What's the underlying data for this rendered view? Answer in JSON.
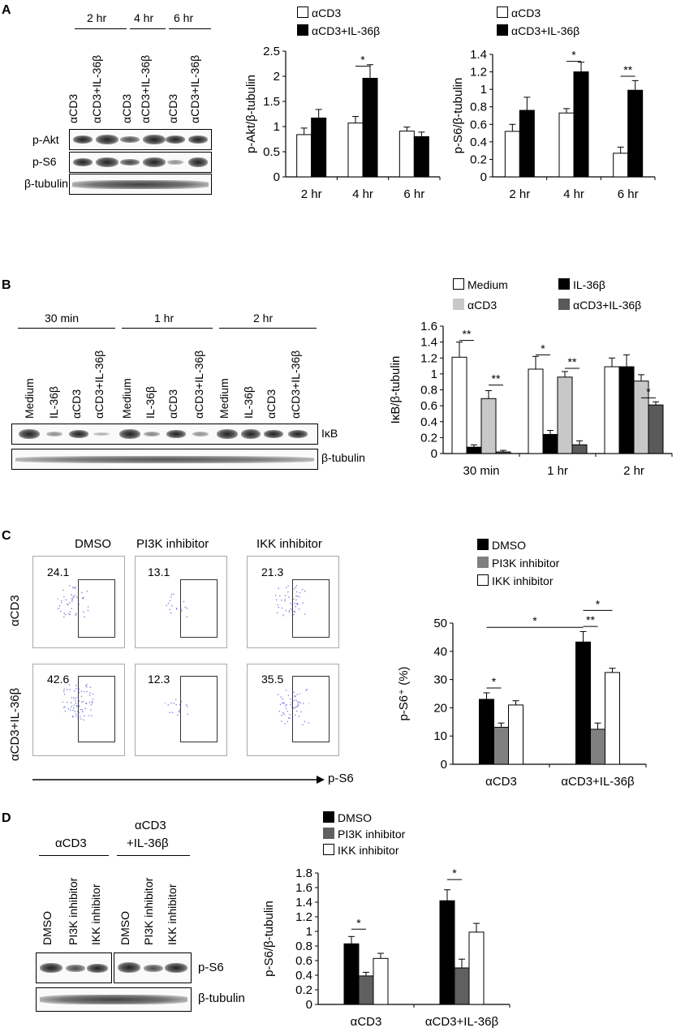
{
  "panels": {
    "A": {
      "letter": "A",
      "blot": {
        "timepoints": [
          "2 hr",
          "4 hr",
          "6 hr"
        ],
        "lanes": [
          "αCD3",
          "αCD3+IL-36β",
          "αCD3",
          "αCD3+IL-36β",
          "αCD3",
          "αCD3+IL-36β"
        ],
        "rows": [
          "p-Akt",
          "p-S6",
          "β-tubulin"
        ]
      }
    },
    "B": {
      "letter": "B",
      "blot": {
        "timepoints": [
          "30 min",
          "1 hr",
          "2 hr"
        ],
        "lanes": [
          "Medium",
          "IL-36β",
          "αCD3",
          "αCD3+IL-36β",
          "Medium",
          "IL-36β",
          "αCD3",
          "αCD3+IL-36β",
          "Medium",
          "IL-36β",
          "αCD3",
          "αCD3+IL-36β"
        ],
        "rows": [
          "IκB",
          "β-tubulin"
        ]
      }
    },
    "C": {
      "letter": "C",
      "flow": {
        "columns": [
          "DMSO",
          "PI3K inhibitor",
          "IKK inhibitor"
        ],
        "rows": [
          "αCD3",
          "αCD3+IL-36β"
        ],
        "percents": [
          [
            "24.1",
            "13.1",
            "21.3"
          ],
          [
            "42.6",
            "12.3",
            "35.5"
          ]
        ],
        "x_axis": "p-S6"
      }
    },
    "D": {
      "letter": "D",
      "blot": {
        "groups": [
          "αCD3",
          "αCD3",
          "+IL-36β"
        ],
        "lanes": [
          "DMSO",
          "PI3K inhibitor",
          "IKK inhibitor",
          "DMSO",
          "PI3K inhibitor",
          "IKK inhibitor"
        ],
        "rows": [
          "p-S6",
          "β-tubulin"
        ]
      }
    }
  },
  "chart_data": [
    {
      "type": "bar",
      "ylabel": "p-Akt/β-tubulin",
      "categories": [
        "2 hr",
        "4 hr",
        "6 hr"
      ],
      "ylim": [
        0,
        2.5
      ],
      "yticks": [
        "0",
        "0.5",
        "1",
        "1.5",
        "2",
        "2.5"
      ],
      "series": [
        {
          "name": "αCD3",
          "color": "#ffffff",
          "values": [
            0.84,
            1.07,
            0.91
          ],
          "errors": [
            0.13,
            0.13,
            0.08
          ]
        },
        {
          "name": "αCD3+IL-36β",
          "color": "#000000",
          "values": [
            1.17,
            1.96,
            0.8
          ],
          "errors": [
            0.17,
            0.27,
            0.09
          ]
        }
      ],
      "annotations": [
        {
          "between": "4 hr",
          "text": "*"
        }
      ]
    },
    {
      "type": "bar",
      "ylabel": "p-S6/β-tubulin",
      "categories": [
        "2 hr",
        "4 hr",
        "6 hr"
      ],
      "ylim": [
        0,
        1.4
      ],
      "yticks": [
        "0",
        "0.2",
        "0.4",
        "0.6",
        "0.8",
        "1",
        "1.2",
        "1.4"
      ],
      "series": [
        {
          "name": "αCD3",
          "color": "#ffffff",
          "values": [
            0.52,
            0.73,
            0.27
          ],
          "errors": [
            0.08,
            0.05,
            0.07
          ]
        },
        {
          "name": "αCD3+IL-36β",
          "color": "#000000",
          "values": [
            0.76,
            1.2,
            0.99
          ],
          "errors": [
            0.15,
            0.11,
            0.11
          ]
        }
      ],
      "annotations": [
        {
          "between": "4 hr",
          "text": "*"
        },
        {
          "between": "6 hr",
          "text": "**"
        }
      ]
    },
    {
      "type": "bar",
      "ylabel": "IκB/β-tubulin",
      "categories": [
        "30 min",
        "1 hr",
        "2 hr"
      ],
      "ylim": [
        0,
        1.6
      ],
      "yticks": [
        "0",
        "0.2",
        "0.4",
        "0.6",
        "0.8",
        "1",
        "1.2",
        "1.4",
        "1.6"
      ],
      "series": [
        {
          "name": "Medium",
          "color": "#ffffff",
          "values": [
            1.21,
            1.06,
            1.09
          ],
          "errors": [
            0.19,
            0.16,
            0.11
          ]
        },
        {
          "name": "IL-36β",
          "color": "#000000",
          "values": [
            0.08,
            0.24,
            1.09
          ],
          "errors": [
            0.03,
            0.05,
            0.15
          ]
        },
        {
          "name": "αCD3",
          "color": "#c8c8c8",
          "values": [
            0.69,
            0.96,
            0.91
          ],
          "errors": [
            0.1,
            0.07,
            0.08
          ]
        },
        {
          "name": "αCD3+IL-36β",
          "color": "#5a5a5a",
          "values": [
            0.02,
            0.11,
            0.61
          ],
          "errors": [
            0.02,
            0.05,
            0.04
          ]
        }
      ],
      "annotations": [
        {
          "between": "30 min Medium–IL-36β",
          "text": "**"
        },
        {
          "between": "30 min αCD3–αCD3+IL-36β",
          "text": "**"
        },
        {
          "between": "1 hr Medium–IL-36β",
          "text": "*"
        },
        {
          "between": "1 hr αCD3–αCD3+IL-36β",
          "text": "**"
        },
        {
          "between": "2 hr αCD3–αCD3+IL-36β",
          "text": "*"
        }
      ]
    },
    {
      "type": "bar",
      "ylabel": "p-S6⁺ (%)",
      "categories": [
        "αCD3",
        "αCD3+IL-36β"
      ],
      "ylim": [
        0,
        50
      ],
      "yticks": [
        "0",
        "10",
        "20",
        "30",
        "40",
        "50"
      ],
      "series": [
        {
          "name": "DMSO",
          "color": "#000000",
          "values": [
            23,
            43.3
          ],
          "errors": [
            2.3,
            3.7
          ]
        },
        {
          "name": "PI3K inhibitor",
          "color": "#808080",
          "values": [
            13.1,
            12.4
          ],
          "errors": [
            1.5,
            2.2
          ]
        },
        {
          "name": "IKK inhibitor",
          "color": "#ffffff",
          "values": [
            21,
            32.5
          ],
          "errors": [
            1.5,
            1.5
          ]
        }
      ],
      "annotations": [
        {
          "between": "αCD3 DMSO–PI3K",
          "text": "*"
        },
        {
          "between": "αCD3 DMSO–αCD3+IL-36β DMSO",
          "text": "*"
        },
        {
          "between": "αCD3+IL-36β DMSO–PI3K",
          "text": "**"
        },
        {
          "between": "αCD3+IL-36β DMSO–IKK",
          "text": "*"
        }
      ]
    },
    {
      "type": "bar",
      "ylabel": "p-S6/β-tubulin",
      "categories": [
        "αCD3",
        "αCD3+IL-36β"
      ],
      "ylim": [
        0,
        1.8
      ],
      "yticks": [
        "0",
        "0.2",
        "0.4",
        "0.6",
        "0.8",
        "1",
        "1.2",
        "1.4",
        "1.6",
        "1.8"
      ],
      "series": [
        {
          "name": "DMSO",
          "color": "#000000",
          "values": [
            0.83,
            1.42
          ],
          "errors": [
            0.1,
            0.15
          ]
        },
        {
          "name": "PI3K inhibitor",
          "color": "#606060",
          "values": [
            0.39,
            0.5
          ],
          "errors": [
            0.05,
            0.12
          ]
        },
        {
          "name": "IKK inhibitor",
          "color": "#ffffff",
          "values": [
            0.63,
            0.99
          ],
          "errors": [
            0.07,
            0.12
          ]
        }
      ],
      "annotations": [
        {
          "between": "αCD3 DMSO–PI3K",
          "text": "*"
        },
        {
          "between": "αCD3+IL-36β DMSO–PI3K",
          "text": "*"
        },
        {
          "between": "αCD3+IL-36β DMSO–IKK",
          "text": "*"
        }
      ]
    }
  ]
}
